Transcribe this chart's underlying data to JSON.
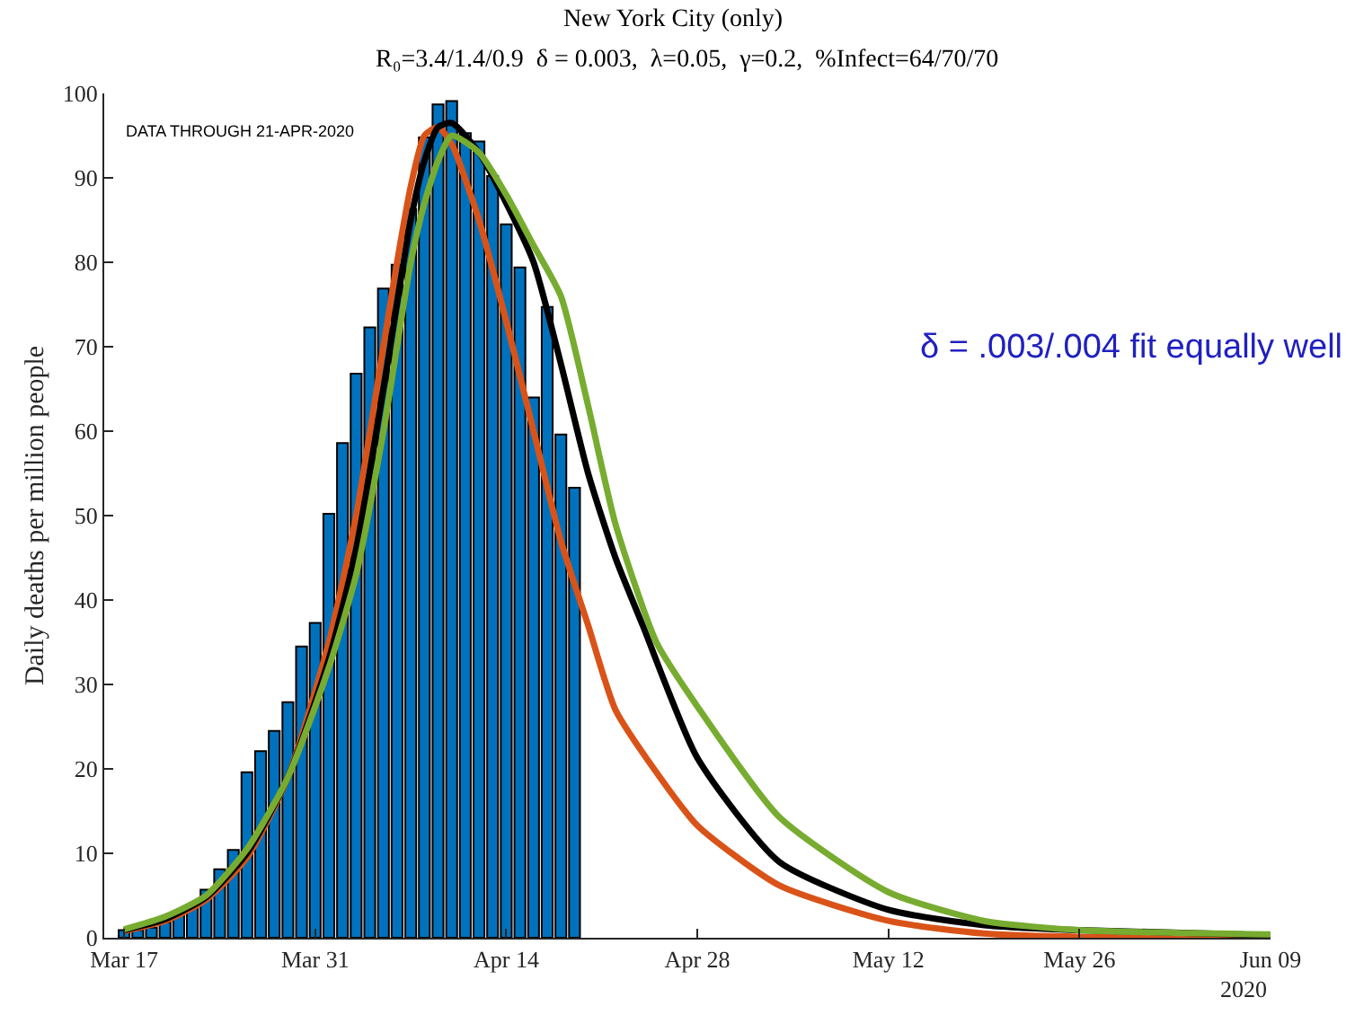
{
  "chart_data": {
    "type": "bar",
    "title": "New York City (only)",
    "subtitle": "R₀=3.4/1.4/0.9  δ = 0.003,  λ=0.05,  γ=0.2,  %Infect=64/70/70",
    "ylabel": "Daily deaths per million people",
    "xlabel": "2020",
    "annotations": [
      "DATA THROUGH 21-APR-2020",
      "δ = .003/.004 fit equally well"
    ],
    "xlim": [
      "2020-03-15T13:00",
      "2020-06-09"
    ],
    "xticks": [
      {
        "value": "2020-03-17",
        "label": "Mar 17"
      },
      {
        "value": "2020-03-31",
        "label": "Mar 31"
      },
      {
        "value": "2020-04-14",
        "label": "Apr 14"
      },
      {
        "value": "2020-04-28",
        "label": "Apr 28"
      },
      {
        "value": "2020-05-12",
        "label": "May 12"
      },
      {
        "value": "2020-05-26",
        "label": "May 26"
      },
      {
        "value": "2020-06-09",
        "label": "Jun 09"
      }
    ],
    "ylim": [
      0,
      100
    ],
    "yticks": [
      0,
      10,
      20,
      30,
      40,
      50,
      60,
      70,
      80,
      90,
      100
    ],
    "grid": false,
    "legend": false,
    "series": [
      {
        "color": "#0072bd",
        "x": [
          "2020-03-17",
          "2020-03-18",
          "2020-03-19",
          "2020-03-20",
          "2020-03-21",
          "2020-03-22",
          "2020-03-23",
          "2020-03-24",
          "2020-03-25",
          "2020-03-26",
          "2020-03-27",
          "2020-03-28",
          "2020-03-29",
          "2020-03-30",
          "2020-03-31",
          "2020-04-01",
          "2020-04-02",
          "2020-04-03",
          "2020-04-04",
          "2020-04-05",
          "2020-04-06",
          "2020-04-07",
          "2020-04-08",
          "2020-04-09",
          "2020-04-10",
          "2020-04-11",
          "2020-04-12",
          "2020-04-13",
          "2020-04-14",
          "2020-04-15",
          "2020-04-16",
          "2020-04-17",
          "2020-04-18",
          "2020-04-19"
        ],
        "values": [
          0.9,
          0.9,
          1.2,
          1.8,
          3.0,
          3.6,
          5.7,
          8.1,
          10.4,
          19.6,
          22.1,
          24.5,
          27.9,
          34.5,
          37.3,
          50.2,
          58.6,
          66.8,
          72.3,
          76.9,
          79.7,
          86.3,
          94.8,
          98.7,
          99.1,
          95.3,
          94.3,
          90.2,
          84.5,
          79.4,
          64.0,
          74.7,
          59.6,
          53.3
        ]
      },
      {
        "type": "line",
        "color": "#d95319",
        "x": [
          "2020-03-17",
          "2020-03-20",
          "2020-03-23",
          "2020-03-26",
          "2020-03-29",
          "2020-04-01",
          "2020-04-03",
          "2020-04-05",
          "2020-04-06",
          "2020-04-07",
          "2020-04-08",
          "2020-04-09",
          "2020-04-10",
          "2020-04-12",
          "2020-04-14",
          "2020-04-16",
          "2020-04-18",
          "2020-04-20",
          "2020-04-22",
          "2020-04-25",
          "2020-04-28",
          "2020-05-04",
          "2020-05-12",
          "2020-05-19",
          "2020-05-26",
          "2020-06-09"
        ],
        "values": [
          0.8,
          2,
          4.5,
          9.5,
          19,
          35,
          50,
          70,
          80,
          89,
          95,
          96,
          94,
          85,
          73,
          60,
          47,
          37,
          27,
          19.6,
          13.3,
          6.2,
          2.0,
          0.5,
          0.1,
          0
        ]
      },
      {
        "type": "line",
        "color": "#000000",
        "x": [
          "2020-03-17",
          "2020-03-20",
          "2020-03-23",
          "2020-03-26",
          "2020-03-29",
          "2020-04-01",
          "2020-04-03",
          "2020-04-05",
          "2020-04-07",
          "2020-04-08",
          "2020-04-09",
          "2020-04-10",
          "2020-04-12",
          "2020-04-14",
          "2020-04-16",
          "2020-04-18",
          "2020-04-20",
          "2020-04-22",
          "2020-04-24",
          "2020-04-28",
          "2020-05-04",
          "2020-05-12",
          "2020-05-19",
          "2020-05-26",
          "2020-06-09"
        ],
        "values": [
          0.9,
          2.2,
          4.8,
          10,
          19,
          33,
          46,
          65,
          85,
          92,
          96,
          96.5,
          93,
          87,
          80,
          68,
          55,
          45,
          37,
          21.3,
          9,
          3.3,
          1.5,
          0.9,
          0.3
        ]
      },
      {
        "type": "line",
        "color": "#77ac30",
        "x": [
          "2020-03-17",
          "2020-03-20",
          "2020-03-23",
          "2020-03-26",
          "2020-03-29",
          "2020-04-01",
          "2020-04-03",
          "2020-04-05",
          "2020-04-07",
          "2020-04-08",
          "2020-04-09",
          "2020-04-10",
          "2020-04-12",
          "2020-04-14",
          "2020-04-16",
          "2020-04-18",
          "2020-04-20",
          "2020-04-22",
          "2020-04-25",
          "2020-04-28",
          "2020-05-04",
          "2020-05-12",
          "2020-05-19",
          "2020-05-26",
          "2020-06-09"
        ],
        "values": [
          1.0,
          2.5,
          5,
          10.5,
          19,
          32,
          43,
          60,
          80,
          87,
          92,
          95,
          93,
          88,
          82,
          76,
          63,
          49,
          35,
          27.4,
          14.3,
          5.4,
          2.0,
          0.9,
          0.4
        ]
      }
    ]
  }
}
